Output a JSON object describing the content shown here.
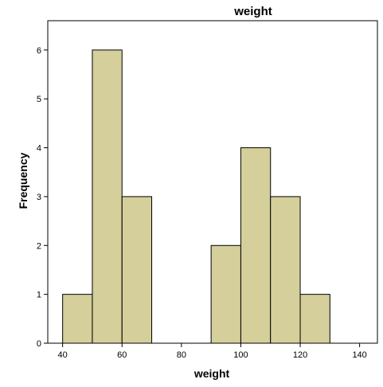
{
  "chart_data": {
    "type": "bar",
    "subtype": "histogram",
    "title": "weight",
    "xlabel": "weight",
    "ylabel": "Frequency",
    "bins": [
      {
        "start": 40,
        "end": 50,
        "count": 1
      },
      {
        "start": 50,
        "end": 60,
        "count": 6
      },
      {
        "start": 60,
        "end": 70,
        "count": 3
      },
      {
        "start": 70,
        "end": 80,
        "count": 0
      },
      {
        "start": 80,
        "end": 90,
        "count": 0
      },
      {
        "start": 90,
        "end": 100,
        "count": 2
      },
      {
        "start": 100,
        "end": 110,
        "count": 4
      },
      {
        "start": 110,
        "end": 120,
        "count": 3
      },
      {
        "start": 120,
        "end": 130,
        "count": 1
      }
    ],
    "xticks": [
      40,
      60,
      80,
      100,
      120,
      140
    ],
    "yticks": [
      0,
      1,
      2,
      3,
      4,
      5,
      6
    ],
    "xlim": [
      35,
      146
    ],
    "ylim": [
      0,
      6.6
    ],
    "grid": false,
    "legend": "none",
    "colors": {
      "bar_fill": "#d4cf9b",
      "plot_background": "#f0f0f0",
      "page_background": "#ffffff"
    }
  }
}
